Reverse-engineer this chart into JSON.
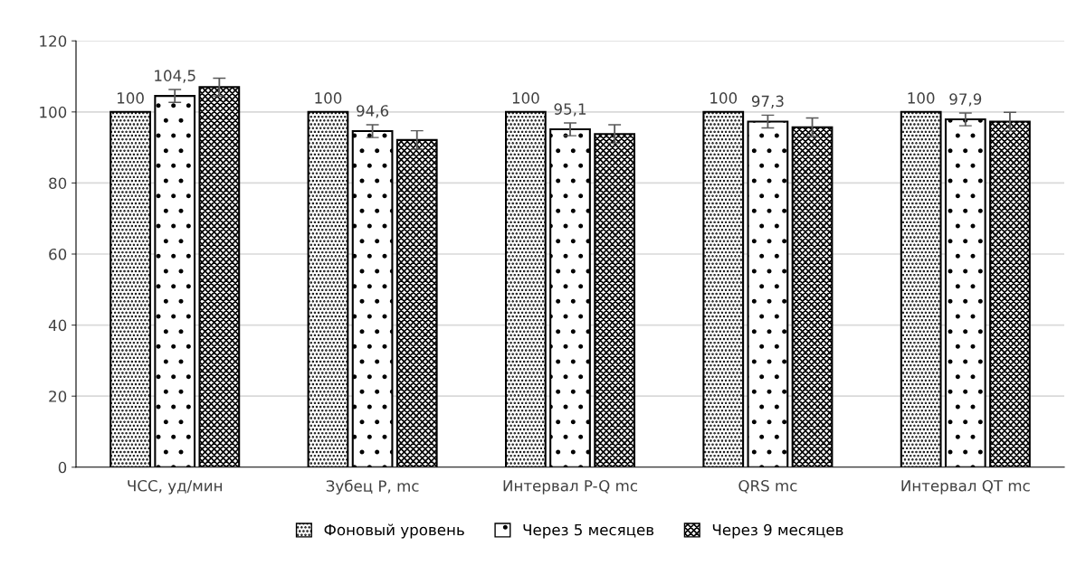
{
  "chart_data": {
    "type": "bar",
    "categories": [
      "ЧСС, уд/мин",
      "Зубец Р, mc",
      "Интервал P-Q mc",
      "QRS mc",
      "Интервал QT mc"
    ],
    "series": [
      {
        "name": "Фоновый уровень",
        "color": "#000000",
        "values": [
          100,
          100,
          100,
          100,
          100
        ],
        "value_labels": [
          "100",
          "100",
          "100",
          "100",
          "100"
        ]
      },
      {
        "name": "Через 5 месяцев",
        "color": "#000000",
        "values": [
          104.5,
          94.6,
          95.1,
          97.3,
          97.9
        ],
        "errors": [
          1.8,
          1.8,
          1.8,
          1.8,
          1.8
        ],
        "value_labels": [
          "104,5",
          "94,6",
          "95,1",
          "97,3",
          "97,9"
        ]
      },
      {
        "name": "Через 9 месяцев",
        "color": "#000000",
        "values": [
          107.0,
          92.1,
          93.8,
          95.7,
          97.3
        ],
        "errors": [
          2.5,
          2.6,
          2.6,
          2.6,
          2.6
        ]
      }
    ],
    "ylim": [
      0,
      120
    ],
    "yticks": [
      0,
      20,
      40,
      60,
      80,
      100,
      120
    ],
    "grid": "y",
    "legend": "bottom"
  }
}
